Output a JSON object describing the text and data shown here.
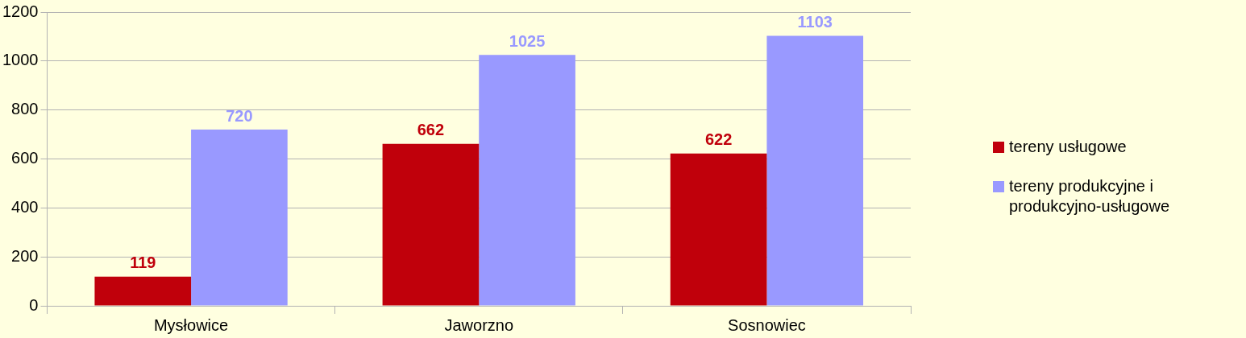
{
  "chart_data": {
    "type": "bar",
    "categories": [
      "Mysłowice",
      "Jaworzno",
      "Sosnowiec"
    ],
    "series": [
      {
        "name": "tereny usługowe",
        "color": "#c0000b",
        "values": [
          119,
          662,
          622
        ]
      },
      {
        "name": "tereny produkcyjne i produkcyjno-usługowe",
        "color": "#9999ff",
        "values": [
          720,
          1025,
          1103
        ]
      }
    ],
    "ylim": [
      0,
      1200
    ],
    "yticks": [
      0,
      200,
      400,
      600,
      800,
      1000,
      1200
    ],
    "grid": "y",
    "legend": "right",
    "data_labels": true
  }
}
